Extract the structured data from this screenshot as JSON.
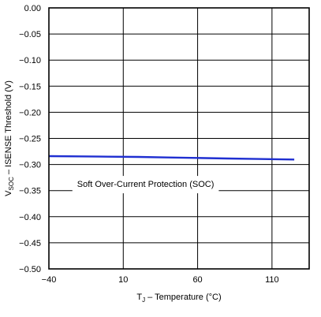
{
  "chart_data": {
    "type": "line",
    "title": "",
    "xlabel": {
      "main": "T",
      "sub": "J",
      "rest": " – Temperature (°C)"
    },
    "ylabel": {
      "main": "V",
      "sub": "SOC",
      "rest": " – ISENSE Threshold (V)"
    },
    "xlim": [
      -40,
      135
    ],
    "ylim": [
      -0.5,
      0.0
    ],
    "x_ticks": [
      -40,
      10,
      60,
      110
    ],
    "x_tick_labels": [
      "−40",
      "10",
      "60",
      "110"
    ],
    "y_ticks": [
      0.0,
      -0.05,
      -0.1,
      -0.15,
      -0.2,
      -0.25,
      -0.3,
      -0.35,
      -0.4,
      -0.45,
      -0.5
    ],
    "y_tick_labels": [
      "0.00",
      "−0.05",
      "−0.10",
      "−0.15",
      "−0.20",
      "−0.25",
      "−0.30",
      "−0.35",
      "−0.40",
      "−0.45",
      "−0.50"
    ],
    "x_gridlines": [
      10,
      60,
      110
    ],
    "y_gridlines": [
      -0.05,
      -0.1,
      -0.15,
      -0.2,
      -0.25,
      -0.3,
      -0.35,
      -0.4,
      -0.45
    ],
    "grid": true,
    "legend": "none",
    "series": [
      {
        "color": "#1f2fd1",
        "x": [
          -40,
          -20,
          0,
          20,
          40,
          60,
          80,
          100,
          125
        ],
        "y": [
          -0.284,
          -0.2845,
          -0.285,
          -0.2855,
          -0.2865,
          -0.2875,
          -0.2885,
          -0.2895,
          -0.2905
        ]
      }
    ],
    "annotations": [
      {
        "text": "Soft Over-Current Protection (SOC)",
        "x": 25,
        "y": -0.337
      }
    ]
  }
}
